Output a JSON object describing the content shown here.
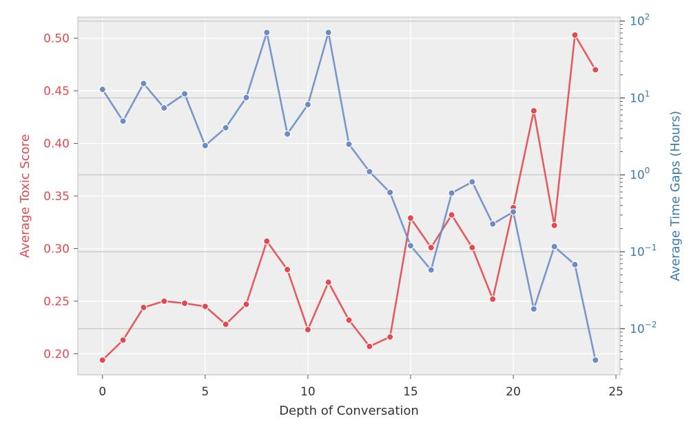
{
  "chart_data": {
    "type": "line",
    "xlabel": "Depth of Conversation",
    "ylabel_left": "Average Toxic Score",
    "ylabel_right": "Average Time Gaps (Hours)",
    "xlim": [
      -1.2,
      25.2
    ],
    "ylim_left": [
      0.18,
      0.52
    ],
    "ylim_right_log10": [
      -2.6,
      2.05
    ],
    "right_axis_scale": "log",
    "grid": true,
    "colors": {
      "toxic": "#e24a4f",
      "time": "#6b8cc7",
      "left_axis": "#e24a4f",
      "right_axis": "#3a7ab0",
      "background": "#eeeeee"
    },
    "x_ticks": [
      "0",
      "5",
      "10",
      "15",
      "20",
      "25"
    ],
    "x_tick_values": [
      0,
      5,
      10,
      15,
      20,
      25
    ],
    "left_ticks": [
      "0.20",
      "0.25",
      "0.30",
      "0.35",
      "0.40",
      "0.45",
      "0.50"
    ],
    "left_tick_values": [
      0.2,
      0.25,
      0.3,
      0.35,
      0.4,
      0.45,
      0.5
    ],
    "right_ticks": [
      {
        "base": "10",
        "exp": "2",
        "value": 100
      },
      {
        "base": "10",
        "exp": "1",
        "value": 10
      },
      {
        "base": "10",
        "exp": "0",
        "value": 1
      },
      {
        "base": "10",
        "exp": "−1",
        "value": 0.1
      },
      {
        "base": "10",
        "exp": "−2",
        "value": 0.01
      }
    ],
    "series": [
      {
        "axis": "left",
        "x": [
          0,
          1,
          2,
          3,
          4,
          5,
          6,
          7,
          8,
          9,
          10,
          11,
          12,
          13,
          14,
          15,
          16,
          17,
          18,
          19,
          20,
          21,
          22,
          23,
          24
        ],
        "values": [
          0.194,
          0.213,
          0.244,
          0.25,
          0.248,
          0.245,
          0.228,
          0.247,
          0.307,
          0.28,
          0.223,
          0.268,
          0.232,
          0.207,
          0.216,
          0.329,
          0.301,
          0.332,
          0.301,
          0.252,
          0.339,
          0.431,
          0.322,
          0.503,
          0.47
        ]
      },
      {
        "axis": "right",
        "x": [
          0,
          1,
          2,
          3,
          4,
          5,
          6,
          7,
          8,
          9,
          10,
          11,
          12,
          13,
          14,
          15,
          16,
          17,
          18,
          19,
          20,
          21,
          22,
          23,
          24
        ],
        "values": [
          12.9,
          5.0,
          15.4,
          7.4,
          11.3,
          2.4,
          4.1,
          10.1,
          71,
          3.4,
          8.2,
          71,
          2.5,
          1.1,
          0.59,
          0.12,
          0.058,
          0.58,
          0.81,
          0.23,
          0.33,
          0.018,
          0.117,
          0.068,
          0.0039
        ]
      }
    ]
  }
}
